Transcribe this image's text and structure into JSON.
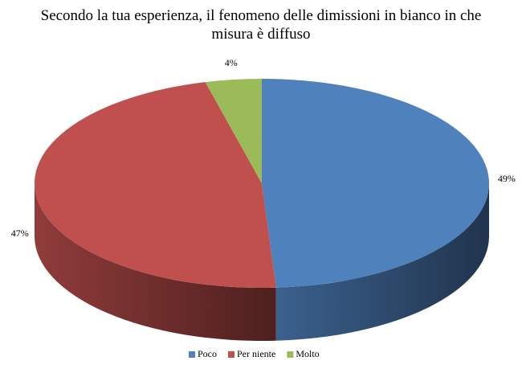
{
  "chart_data": {
    "type": "pie3d",
    "title": "Secondo la tua esperienza, il fenomeno delle dimissioni in bianco in che misura è diffuso",
    "categories": [
      "Poco",
      "Per niente",
      "Molto"
    ],
    "values": [
      49,
      47,
      4
    ],
    "value_labels": [
      "49%",
      "47%",
      "4%"
    ],
    "colors": [
      "#4f81bd",
      "#c0504d",
      "#9bbb59"
    ],
    "legend": "bottom"
  }
}
